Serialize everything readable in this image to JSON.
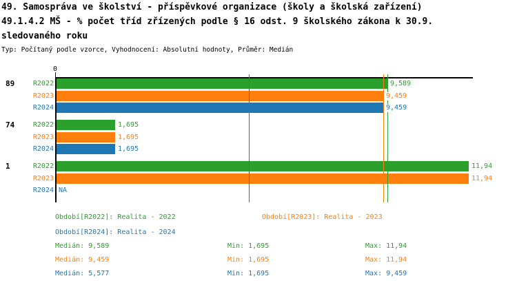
{
  "title": {
    "line1": "49. Samospráva ve školství - příspěvkové organizace (školy a školská zařízení)",
    "line2": "49.1.4.2 MŠ - % počet tříd zřízených podle § 16 odst. 9 školského zákona k 30.9.",
    "line3": "sledovaného roku",
    "subtitle": "Typ: Počítaný podle vzorce, Vyhodnocení: Absolutní hodnoty, Průměr: Medián"
  },
  "colors": {
    "r2022": "#2ca02c",
    "r2023": "#ff7f0e",
    "r2024": "#1f77b4",
    "axis": "#000000",
    "background": "#ffffff"
  },
  "chart_data": {
    "type": "bar",
    "orientation": "horizontal",
    "axis": {
      "zero_label": "0",
      "min": 0,
      "max": 11.94
    },
    "series": [
      {
        "name": "R2022",
        "label": "R2022",
        "color": "#2ca02c",
        "median": 9.589
      },
      {
        "name": "R2023",
        "label": "R2023",
        "color": "#ff7f0e",
        "median": 9.459
      },
      {
        "name": "R2024",
        "label": "R2024",
        "color": "#1f77b4",
        "median": 5.577
      }
    ],
    "groups": [
      {
        "label": "89",
        "values": [
          9.589,
          9.459,
          9.459
        ],
        "display": [
          "9,589",
          "9,459",
          "9,459"
        ]
      },
      {
        "label": "74",
        "values": [
          1.695,
          1.695,
          1.695
        ],
        "display": [
          "1,695",
          "1,695",
          "1,695"
        ]
      },
      {
        "label": "1",
        "values": [
          11.94,
          11.94,
          null
        ],
        "display": [
          "11,94",
          "11,94",
          "NA"
        ]
      }
    ],
    "median_lines": [
      {
        "series": "R2022",
        "value": 9.589,
        "color": "#2ca02c"
      },
      {
        "series": "R2023",
        "value": 9.459,
        "color": "#ff7f0e"
      },
      {
        "series": "R2024",
        "value": 5.577,
        "color": "#1f77b4"
      }
    ]
  },
  "legend": [
    {
      "label": "Období[R2022]: Realita - 2022",
      "color": "#2ca02c"
    },
    {
      "label": "Období[R2023]: Realita - 2023",
      "color": "#ff7f0e"
    },
    {
      "label": "Období[R2024]: Realita - 2024",
      "color": "#1f77b4"
    }
  ],
  "stats": [
    {
      "median": "Medián: 9,589",
      "min": "Min: 1,695",
      "max": "Max: 11,94",
      "color": "#2ca02c"
    },
    {
      "median": "Medián: 9,459",
      "min": "Min: 1,695",
      "max": "Max: 11,94",
      "color": "#ff7f0e"
    },
    {
      "median": "Medián: 5,577",
      "min": "Min: 1,695",
      "max": "Max: 9,459",
      "color": "#1f77b4"
    }
  ]
}
